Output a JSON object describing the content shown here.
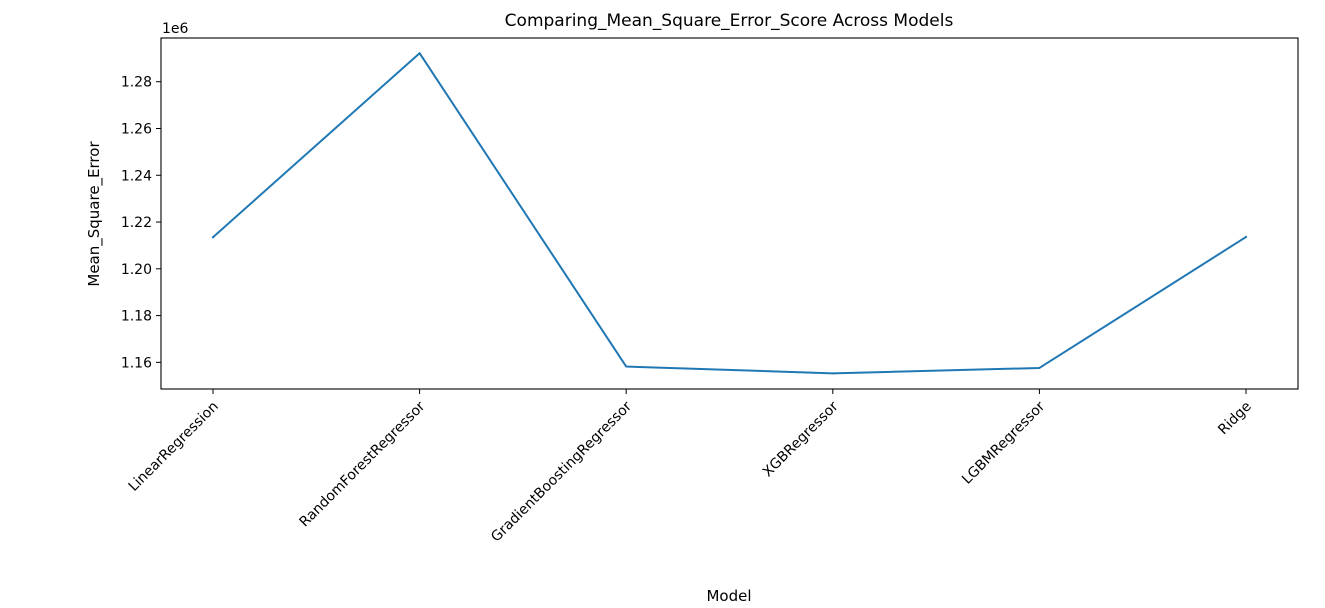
{
  "chart_data": {
    "type": "line",
    "title": "Comparing_Mean_Square_Error_Score Across Models",
    "xlabel": "Model",
    "ylabel": "Mean_Square_Error",
    "y_offset_label": "1e6",
    "y_scale": 1000000,
    "categories": [
      "LinearRegression",
      "RandomForestRegressor",
      "GradientBoostingRegressor",
      "XGBRegressor",
      "LGBMRegressor",
      "Ridge"
    ],
    "series": [
      {
        "values": [
          1213500,
          1292200,
          1158200,
          1155300,
          1157600,
          1213600
        ],
        "color": "#1f77b4"
      }
    ],
    "yticks": [
      "1.16",
      "1.18",
      "1.20",
      "1.22",
      "1.24",
      "1.26",
      "1.28"
    ],
    "ylim": [
      1148600,
      1298700
    ],
    "grid": false,
    "legend": "none"
  }
}
